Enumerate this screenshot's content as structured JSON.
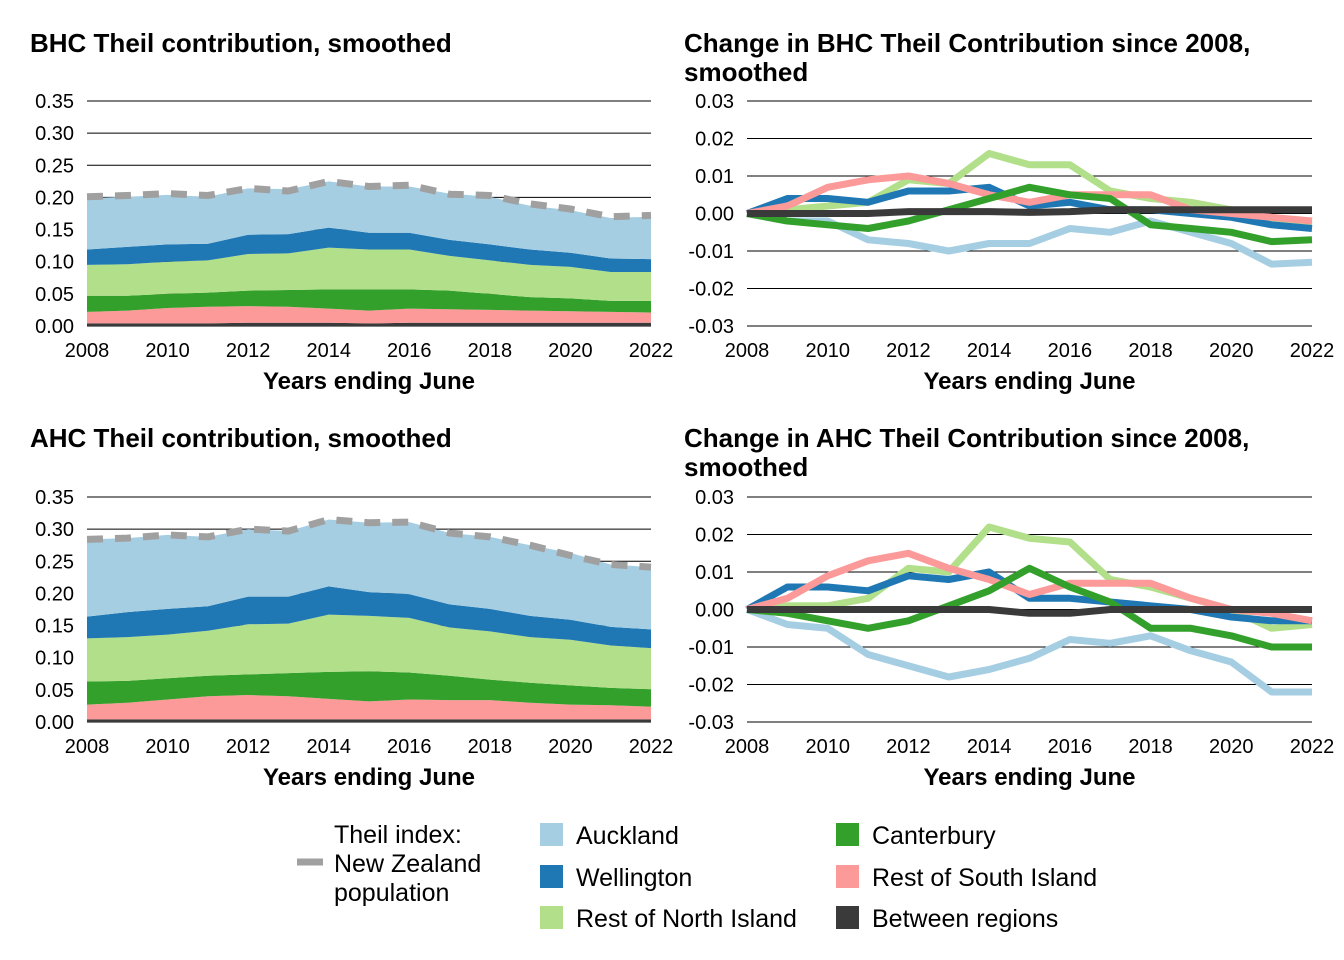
{
  "x_label": "Years ending June",
  "years": [
    2008,
    2009,
    2010,
    2011,
    2012,
    2013,
    2014,
    2015,
    2016,
    2017,
    2018,
    2019,
    2020,
    2021,
    2022
  ],
  "legend": {
    "total": "Theil index:\nNew Zealand\npopulation",
    "items": [
      {
        "key": "auckland",
        "label": "Auckland"
      },
      {
        "key": "canterbury",
        "label": "Canterbury"
      },
      {
        "key": "wellington",
        "label": "Wellington"
      },
      {
        "key": "rest_si",
        "label": "Rest of South Island"
      },
      {
        "key": "rest_ni",
        "label": "Rest of North Island"
      },
      {
        "key": "between",
        "label": "Between regions"
      }
    ]
  },
  "colors": {
    "auckland": "#a6cee3",
    "wellington": "#1f78b4",
    "rest_ni": "#b2df8a",
    "canterbury": "#33a02c",
    "rest_si": "#fb9a99",
    "between": "#3a3a3a",
    "total": "#a0a0a0"
  },
  "chart_data": [
    {
      "id": "bhc_contrib",
      "type": "area",
      "title": "BHC Theil contribution, smoothed",
      "xlabel": "Years ending June",
      "ylim": [
        0,
        0.35
      ],
      "yticks": [
        "0.00",
        "0.05",
        "0.10",
        "0.15",
        "0.20",
        "0.25",
        "0.30",
        "0.35"
      ],
      "xticks": [
        2008,
        2010,
        2012,
        2014,
        2016,
        2018,
        2020,
        2022
      ],
      "stacked": [
        {
          "key": "between",
          "name": "Between regions",
          "values": [
            0.004,
            0.004,
            0.004,
            0.004,
            0.005,
            0.005,
            0.005,
            0.004,
            0.005,
            0.005,
            0.005,
            0.005,
            0.005,
            0.005,
            0.005
          ]
        },
        {
          "key": "rest_si",
          "name": "Rest of South Island",
          "values": [
            0.018,
            0.02,
            0.024,
            0.026,
            0.026,
            0.025,
            0.022,
            0.02,
            0.022,
            0.021,
            0.02,
            0.019,
            0.018,
            0.017,
            0.016
          ]
        },
        {
          "key": "canterbury",
          "name": "Canterbury",
          "values": [
            0.025,
            0.023,
            0.022,
            0.022,
            0.024,
            0.026,
            0.03,
            0.033,
            0.03,
            0.029,
            0.025,
            0.021,
            0.02,
            0.017,
            0.018
          ]
        },
        {
          "key": "rest_ni",
          "name": "Rest of North Island",
          "values": [
            0.048,
            0.049,
            0.05,
            0.05,
            0.057,
            0.057,
            0.065,
            0.062,
            0.062,
            0.054,
            0.052,
            0.05,
            0.049,
            0.045,
            0.045
          ]
        },
        {
          "key": "wellington",
          "name": "Wellington",
          "values": [
            0.024,
            0.027,
            0.027,
            0.026,
            0.03,
            0.03,
            0.031,
            0.026,
            0.026,
            0.025,
            0.025,
            0.024,
            0.022,
            0.021,
            0.02
          ]
        },
        {
          "key": "auckland",
          "name": "Auckland",
          "values": [
            0.08,
            0.078,
            0.077,
            0.073,
            0.072,
            0.07,
            0.072,
            0.072,
            0.072,
            0.072,
            0.074,
            0.068,
            0.066,
            0.063,
            0.066
          ]
        }
      ],
      "total": {
        "key": "total",
        "name": "Theil index: New Zealand population",
        "values": [
          0.201,
          0.203,
          0.206,
          0.203,
          0.214,
          0.21,
          0.225,
          0.217,
          0.219,
          0.205,
          0.203,
          0.19,
          0.182,
          0.17,
          0.172
        ]
      }
    },
    {
      "id": "bhc_change",
      "type": "line",
      "title": "Change in BHC Theil Contribution since 2008,\nsmoothed",
      "xlabel": "Years ending June",
      "ylim": [
        -0.03,
        0.03
      ],
      "yticks": [
        "-0.03",
        "-0.02",
        "-0.01",
        "0.00",
        "0.01",
        "0.02",
        "0.03"
      ],
      "xticks": [
        2008,
        2010,
        2012,
        2014,
        2016,
        2018,
        2020,
        2022
      ],
      "series": [
        {
          "key": "auckland",
          "name": "Auckland",
          "values": [
            0,
            -0.002,
            -0.002,
            -0.007,
            -0.008,
            -0.01,
            -0.008,
            -0.008,
            -0.004,
            -0.005,
            -0.002,
            -0.005,
            -0.008,
            -0.0135,
            -0.013
          ]
        },
        {
          "key": "rest_ni",
          "name": "Rest of North Island",
          "values": [
            0,
            0.001,
            0.002,
            0.003,
            0.009,
            0.008,
            0.016,
            0.013,
            0.013,
            0.006,
            0.004,
            0.003,
            0.001,
            -0.002,
            -0.003
          ]
        },
        {
          "key": "wellington",
          "name": "Wellington",
          "values": [
            0,
            0.004,
            0.004,
            0.003,
            0.006,
            0.006,
            0.007,
            0.002,
            0.003,
            0.001,
            0.001,
            0.0,
            -0.001,
            -0.003,
            -0.004
          ]
        },
        {
          "key": "rest_si",
          "name": "Rest of South Island",
          "values": [
            0,
            0.002,
            0.007,
            0.009,
            0.01,
            0.008,
            0.005,
            0.003,
            0.005,
            0.005,
            0.005,
            0.001,
            0.0,
            -0.001,
            -0.002
          ]
        },
        {
          "key": "canterbury",
          "name": "Canterbury",
          "values": [
            0,
            -0.002,
            -0.003,
            -0.004,
            -0.002,
            0.001,
            0.004,
            0.007,
            0.005,
            0.004,
            -0.003,
            -0.004,
            -0.005,
            -0.0075,
            -0.007
          ]
        },
        {
          "key": "between",
          "name": "Between regions",
          "values": [
            0,
            0,
            0,
            0,
            0.0005,
            0.0005,
            0.0005,
            0.0003,
            0.0005,
            0.001,
            0.001,
            0.001,
            0.001,
            0.001,
            0.001
          ]
        }
      ]
    },
    {
      "id": "ahc_contrib",
      "type": "area",
      "title": "AHC Theil contribution, smoothed",
      "xlabel": "Years ending June",
      "ylim": [
        0,
        0.35
      ],
      "yticks": [
        "0.00",
        "0.05",
        "0.10",
        "0.15",
        "0.20",
        "0.25",
        "0.30",
        "0.35"
      ],
      "xticks": [
        2008,
        2010,
        2012,
        2014,
        2016,
        2018,
        2020,
        2022
      ],
      "stacked": [
        {
          "key": "between",
          "name": "Between regions",
          "values": [
            0.004,
            0.004,
            0.004,
            0.004,
            0.004,
            0.004,
            0.004,
            0.004,
            0.004,
            0.004,
            0.004,
            0.004,
            0.004,
            0.004,
            0.004
          ]
        },
        {
          "key": "rest_si",
          "name": "Rest of South Island",
          "values": [
            0.023,
            0.026,
            0.031,
            0.036,
            0.038,
            0.036,
            0.032,
            0.028,
            0.031,
            0.03,
            0.03,
            0.026,
            0.023,
            0.022,
            0.02
          ]
        },
        {
          "key": "canterbury",
          "name": "Canterbury",
          "values": [
            0.036,
            0.034,
            0.033,
            0.032,
            0.032,
            0.036,
            0.042,
            0.047,
            0.042,
            0.038,
            0.032,
            0.031,
            0.03,
            0.027,
            0.027
          ]
        },
        {
          "key": "rest_ni",
          "name": "Rest of North Island",
          "values": [
            0.067,
            0.068,
            0.068,
            0.07,
            0.078,
            0.077,
            0.089,
            0.086,
            0.085,
            0.075,
            0.075,
            0.071,
            0.071,
            0.066,
            0.064
          ]
        },
        {
          "key": "wellington",
          "name": "Wellington",
          "values": [
            0.034,
            0.039,
            0.04,
            0.038,
            0.043,
            0.042,
            0.044,
            0.037,
            0.037,
            0.036,
            0.035,
            0.033,
            0.031,
            0.029,
            0.029
          ]
        },
        {
          "key": "auckland",
          "name": "Auckland",
          "values": [
            0.12,
            0.115,
            0.115,
            0.108,
            0.105,
            0.102,
            0.104,
            0.108,
            0.112,
            0.111,
            0.112,
            0.11,
            0.104,
            0.097,
            0.097
          ]
        }
      ],
      "total": {
        "key": "total",
        "name": "Theil index: New Zealand population",
        "values": [
          0.284,
          0.286,
          0.291,
          0.288,
          0.3,
          0.297,
          0.315,
          0.31,
          0.311,
          0.294,
          0.288,
          0.275,
          0.259,
          0.245,
          0.241
        ]
      }
    },
    {
      "id": "ahc_change",
      "type": "line",
      "title": "Change in AHC Theil Contribution since 2008,\nsmoothed",
      "xlabel": "Years ending June",
      "ylim": [
        -0.03,
        0.03
      ],
      "yticks": [
        "-0.03",
        "-0.02",
        "-0.01",
        "0.00",
        "0.01",
        "0.02",
        "0.03"
      ],
      "xticks": [
        2008,
        2010,
        2012,
        2014,
        2016,
        2018,
        2020,
        2022
      ],
      "series": [
        {
          "key": "auckland",
          "name": "Auckland",
          "values": [
            0,
            -0.004,
            -0.005,
            -0.012,
            -0.015,
            -0.018,
            -0.016,
            -0.013,
            -0.008,
            -0.009,
            -0.007,
            -0.011,
            -0.014,
            -0.022,
            -0.022
          ]
        },
        {
          "key": "rest_ni",
          "name": "Rest of North Island",
          "values": [
            0,
            0.001,
            0.001,
            0.003,
            0.011,
            0.01,
            0.022,
            0.019,
            0.018,
            0.008,
            0.006,
            0.003,
            0.0,
            -0.005,
            -0.004
          ]
        },
        {
          "key": "wellington",
          "name": "Wellington",
          "values": [
            0,
            0.006,
            0.006,
            0.005,
            0.009,
            0.008,
            0.01,
            0.003,
            0.003,
            0.002,
            0.001,
            0.0,
            -0.002,
            -0.003,
            -0.003
          ]
        },
        {
          "key": "rest_si",
          "name": "Rest of South Island",
          "values": [
            0,
            0.003,
            0.009,
            0.013,
            0.015,
            0.011,
            0.008,
            0.004,
            0.007,
            0.007,
            0.007,
            0.003,
            0.0,
            -0.001,
            -0.003
          ]
        },
        {
          "key": "canterbury",
          "name": "Canterbury",
          "values": [
            0,
            -0.001,
            -0.003,
            -0.005,
            -0.003,
            0.001,
            0.005,
            0.011,
            0.006,
            0.002,
            -0.005,
            -0.005,
            -0.007,
            -0.01,
            -0.01
          ]
        },
        {
          "key": "between",
          "name": "Between regions",
          "values": [
            0,
            0,
            0,
            0,
            0,
            0,
            0,
            -0.001,
            -0.001,
            0,
            0,
            0,
            0,
            0,
            0
          ]
        }
      ]
    }
  ]
}
